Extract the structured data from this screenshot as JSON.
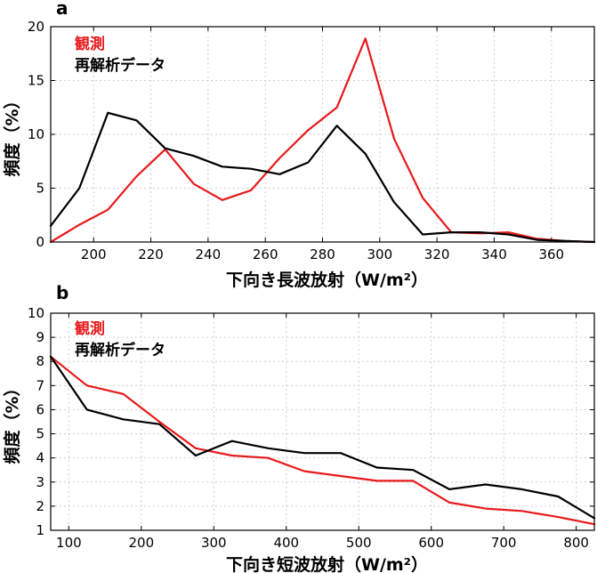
{
  "chart_data": [
    {
      "panel_label": "a",
      "type": "line",
      "xlabel": "下向き長波放射（W/m²）",
      "ylabel": "頻度（%）",
      "xlim": [
        185,
        375
      ],
      "ylim": [
        0,
        20
      ],
      "xticks": [
        200,
        220,
        240,
        260,
        280,
        300,
        320,
        340,
        360
      ],
      "yticks": [
        0,
        5,
        10,
        15,
        20
      ],
      "grid": true,
      "legend_position": "top-left",
      "series": [
        {
          "name": "観測",
          "color": "#e8191b",
          "x": [
            185,
            195,
            205,
            215,
            225,
            235,
            245,
            255,
            265,
            275,
            285,
            295,
            305,
            315,
            325,
            335,
            345,
            355,
            365,
            375
          ],
          "y": [
            0.0,
            1.6,
            3.0,
            6.1,
            8.6,
            5.4,
            3.9,
            4.8,
            7.8,
            10.4,
            12.5,
            18.9,
            9.6,
            4.1,
            0.9,
            0.8,
            0.9,
            0.3,
            0.1,
            0.0
          ]
        },
        {
          "name": "再解析データ",
          "color": "#000000",
          "x": [
            185,
            195,
            205,
            215,
            225,
            235,
            245,
            255,
            265,
            275,
            285,
            295,
            305,
            315,
            325,
            335,
            345,
            355,
            365,
            375
          ],
          "y": [
            1.5,
            5.0,
            12.0,
            11.3,
            8.7,
            8.0,
            7.0,
            6.8,
            6.3,
            7.4,
            10.8,
            8.2,
            3.7,
            0.7,
            0.9,
            0.9,
            0.7,
            0.2,
            0.1,
            0.0
          ]
        }
      ]
    },
    {
      "panel_label": "b",
      "type": "line",
      "xlabel": "下向き短波放射（W/m²）",
      "ylabel": "頻度（%）",
      "xlim": [
        75,
        825
      ],
      "ylim": [
        1,
        10
      ],
      "xticks": [
        100,
        200,
        300,
        400,
        500,
        600,
        700,
        800
      ],
      "yticks": [
        1,
        2,
        3,
        4,
        5,
        6,
        7,
        8,
        9,
        10
      ],
      "grid": true,
      "legend_position": "top-left",
      "series": [
        {
          "name": "観測",
          "color": "#e8191b",
          "x": [
            75,
            125,
            175,
            225,
            275,
            325,
            375,
            425,
            475,
            525,
            575,
            625,
            675,
            725,
            775,
            825
          ],
          "y": [
            8.2,
            7.0,
            6.65,
            5.5,
            4.4,
            4.1,
            4.0,
            3.45,
            3.25,
            3.05,
            3.05,
            2.15,
            1.9,
            1.8,
            1.55,
            1.25
          ]
        },
        {
          "name": "再解析データ",
          "color": "#000000",
          "x": [
            75,
            125,
            175,
            225,
            275,
            325,
            375,
            425,
            475,
            525,
            575,
            625,
            675,
            725,
            775,
            825
          ],
          "y": [
            8.2,
            6.0,
            5.6,
            5.4,
            4.1,
            4.7,
            4.4,
            4.2,
            4.2,
            3.6,
            3.5,
            2.7,
            2.9,
            2.7,
            2.4,
            1.5
          ]
        }
      ]
    }
  ]
}
